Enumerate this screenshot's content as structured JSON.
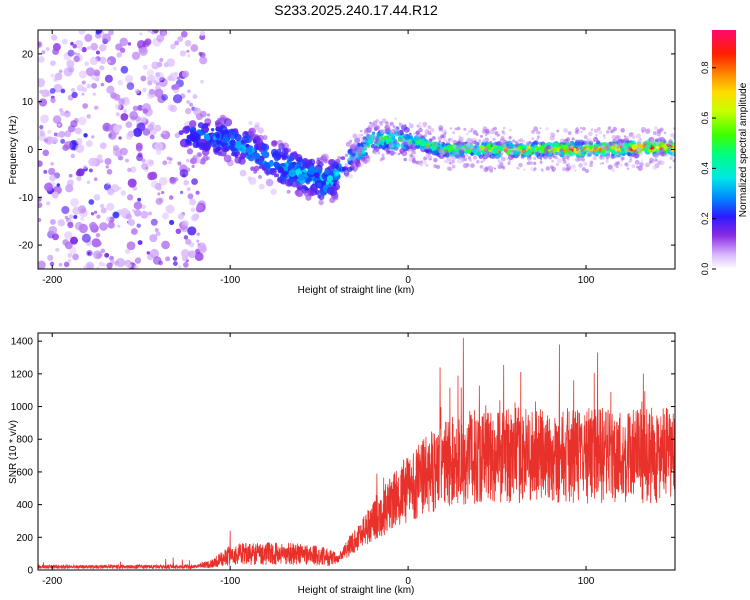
{
  "title": "S233.2025.240.17.44.R12",
  "colors": {
    "axis": "#000000",
    "snr_line": "#e8312a",
    "colormap": [
      "#ffffff",
      "#a24dff",
      "#6a00e8",
      "#1a1aff",
      "#00b4ff",
      "#00ffd0",
      "#3cff00",
      "#ffff00",
      "#ff9a00",
      "#ff0000",
      "#ff0066"
    ]
  },
  "chart_data": [
    {
      "type": "heatmap",
      "name": "spectrogram",
      "xlabel": "Height of straight line (km)",
      "ylabel": "Frequency (Hz)",
      "xlim": [
        -208,
        150
      ],
      "ylim": [
        -25,
        25
      ],
      "xticks": [
        -200,
        -100,
        0,
        100
      ],
      "xtick_labels": [
        "-200",
        "-100",
        "0",
        "100"
      ],
      "yticks": [
        20,
        10,
        0,
        -10,
        -20
      ],
      "ytick_labels": [
        "20",
        "10",
        "0",
        "-10",
        "-20"
      ],
      "colorbar": {
        "label": "Normalized spectral amplitude",
        "range": [
          0,
          0.95
        ],
        "ticks": [
          0.0,
          0.2,
          0.4,
          0.6,
          0.8
        ],
        "tick_labels": [
          "0.0",
          "0.2",
          "0.4",
          "0.6",
          "0.8"
        ]
      },
      "ridge": {
        "x": [
          -120,
          -100,
          -80,
          -60,
          -45,
          -35,
          -20,
          0,
          20,
          50,
          100,
          150
        ],
        "freq_hz": [
          3,
          2,
          -2,
          -5,
          -7,
          -3,
          2,
          2,
          0,
          0,
          0,
          0.5
        ],
        "amplitude": [
          0.2,
          0.25,
          0.25,
          0.3,
          0.3,
          0.3,
          0.45,
          0.45,
          0.5,
          0.65,
          0.75,
          0.85
        ]
      }
    },
    {
      "type": "line",
      "name": "snr",
      "xlabel": "Height of straight line (km)",
      "ylabel": "SNR (10 * v/v)",
      "xlim": [
        -208,
        150
      ],
      "ylim": [
        0,
        1450
      ],
      "xticks": [
        -200,
        -100,
        0,
        100
      ],
      "xtick_labels": [
        "-200",
        "-100",
        "0",
        "100"
      ],
      "yticks": [
        0,
        200,
        400,
        600,
        800,
        1000,
        1200,
        1400
      ],
      "ytick_labels": [
        "0",
        "200",
        "400",
        "600",
        "800",
        "1000",
        "1200",
        "1400"
      ],
      "trend": {
        "x": [
          -208,
          -120,
          -110,
          -100,
          -90,
          -60,
          -45,
          -40,
          -20,
          0,
          20,
          40,
          60,
          100,
          150
        ],
        "y": [
          20,
          20,
          40,
          90,
          100,
          100,
          80,
          60,
          300,
          500,
          650,
          700,
          700,
          700,
          700
        ]
      },
      "spikes": [
        {
          "x": 31,
          "y": 1420
        },
        {
          "x": 85,
          "y": 1380
        },
        {
          "x": 18,
          "y": 1240
        },
        {
          "x": -100,
          "y": 240
        }
      ]
    }
  ]
}
